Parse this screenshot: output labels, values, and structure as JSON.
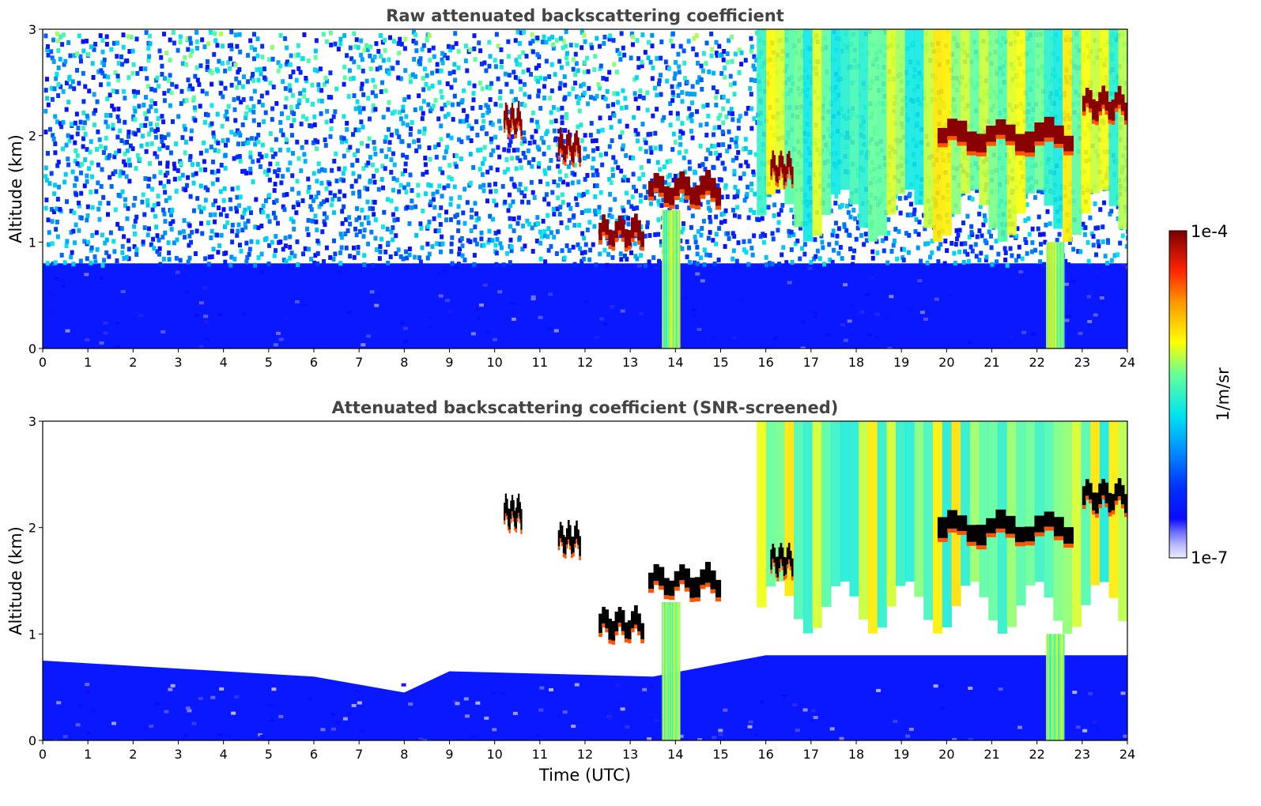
{
  "chart_data": [
    {
      "type": "heatmap",
      "title": "Raw attenuated backscattering coefficient",
      "xlabel": "",
      "ylabel": "Altitude (km)",
      "xlim": [
        0,
        24
      ],
      "ylim": [
        0,
        3
      ],
      "xticks": [
        0,
        1,
        2,
        3,
        4,
        5,
        6,
        7,
        8,
        9,
        10,
        11,
        12,
        13,
        14,
        15,
        16,
        17,
        18,
        19,
        20,
        21,
        22,
        23,
        24
      ],
      "yticks": [
        0,
        1,
        2,
        3
      ],
      "grid": false,
      "color_scale": "log",
      "clim": [
        1e-07,
        0.0001
      ],
      "features": {
        "boundary_layer_top_km": 0.8,
        "cloud_layers": [
          {
            "t_start": 10.2,
            "t_end": 10.6,
            "alt_km": 2.15
          },
          {
            "t_start": 11.4,
            "t_end": 11.9,
            "alt_km": 1.9
          },
          {
            "t_start": 12.3,
            "t_end": 13.3,
            "alt_km": 1.1
          },
          {
            "t_start": 13.4,
            "t_end": 15.0,
            "alt_km": 1.5
          },
          {
            "t_start": 16.1,
            "t_end": 16.6,
            "alt_km": 1.7
          },
          {
            "t_start": 19.8,
            "t_end": 22.8,
            "alt_km": 2.0
          },
          {
            "t_start": 23.0,
            "t_end": 24.0,
            "alt_km": 2.3
          }
        ],
        "aerosol_plumes": [
          {
            "t_start": 15.8,
            "t_end": 24.0,
            "alt_top_km": 3.0,
            "alt_base_km": 1.1
          },
          {
            "t_start": 13.7,
            "t_end": 14.1,
            "alt_top_km": 1.3,
            "alt_base_km": 0.0
          },
          {
            "t_start": 22.2,
            "t_end": 22.6,
            "alt_top_km": 1.0,
            "alt_base_km": 0.0
          }
        ]
      }
    },
    {
      "type": "heatmap",
      "title": "Attenuated backscattering coefficient (SNR-screened)",
      "xlabel": "Time (UTC)",
      "ylabel": "Altitude (km)",
      "xlim": [
        0,
        24
      ],
      "ylim": [
        0,
        3
      ],
      "xticks": [
        0,
        1,
        2,
        3,
        4,
        5,
        6,
        7,
        8,
        9,
        10,
        11,
        12,
        13,
        14,
        15,
        16,
        17,
        18,
        19,
        20,
        21,
        22,
        23,
        24
      ],
      "yticks": [
        0,
        1,
        2,
        3
      ],
      "grid": false,
      "color_scale": "log",
      "clim": [
        1e-07,
        0.0001
      ],
      "features": {
        "screened_layer_top_km": [
          {
            "t": 0,
            "alt_km": 0.75
          },
          {
            "t": 6,
            "alt_km": 0.6
          },
          {
            "t": 8,
            "alt_km": 0.45
          },
          {
            "t": 9,
            "alt_km": 0.65
          },
          {
            "t": 13.5,
            "alt_km": 0.6
          },
          {
            "t": 16,
            "alt_km": 0.8
          },
          {
            "t": 24,
            "alt_km": 0.8
          }
        ]
      }
    }
  ],
  "colorbar": {
    "label": "1/m/sr",
    "min_label": "1e-7",
    "max_label": "1e-4",
    "colormap": "jet"
  }
}
